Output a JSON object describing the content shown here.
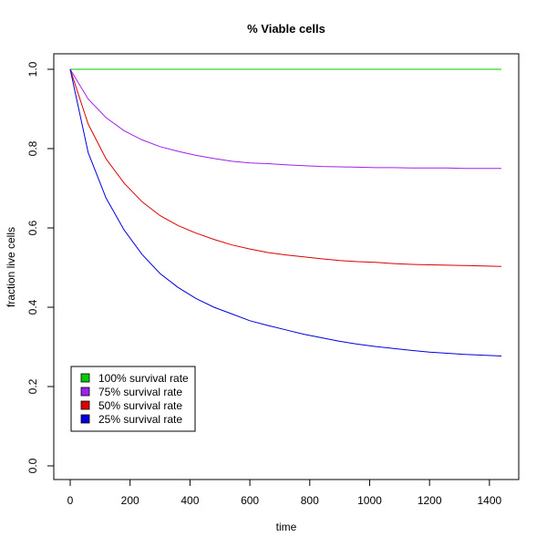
{
  "chart_data": {
    "type": "line",
    "title": "% Viable cells",
    "xlabel": "time",
    "ylabel": "fraction live cells",
    "xlim": [
      0,
      1440
    ],
    "ylim": [
      0,
      1
    ],
    "x_ticks": [
      0,
      200,
      400,
      600,
      800,
      1000,
      1200,
      1400
    ],
    "x_tick_labels": [
      "0",
      "200",
      "400",
      "600",
      "800",
      "1000",
      "1200",
      "1400"
    ],
    "y_ticks": [
      0,
      0.2,
      0.4,
      0.6,
      0.8,
      1.0
    ],
    "y_tick_labels": [
      "0.0",
      "0.2",
      "0.4",
      "0.6",
      "0.8",
      "1.0"
    ],
    "grid": false,
    "legend_position": "bottom-left",
    "x": [
      0,
      60,
      120,
      180,
      240,
      300,
      360,
      420,
      480,
      540,
      600,
      660,
      720,
      780,
      840,
      900,
      960,
      1020,
      1080,
      1140,
      1200,
      1260,
      1320,
      1380,
      1440
    ],
    "series": [
      {
        "name": "100% survival rate",
        "color": "#00cc00",
        "values": [
          1.0,
          1.0,
          1.0,
          1.0,
          1.0,
          1.0,
          1.0,
          1.0,
          1.0,
          1.0,
          1.0,
          1.0,
          1.0,
          1.0,
          1.0,
          1.0,
          1.0,
          1.0,
          1.0,
          1.0,
          1.0,
          1.0,
          1.0,
          1.0,
          1.0
        ]
      },
      {
        "name": "75% survival rate",
        "color": "#a020f0",
        "values": [
          1.0,
          0.925,
          0.878,
          0.845,
          0.822,
          0.805,
          0.793,
          0.783,
          0.775,
          0.768,
          0.764,
          0.762,
          0.759,
          0.757,
          0.755,
          0.754,
          0.753,
          0.752,
          0.752,
          0.751,
          0.751,
          0.751,
          0.75,
          0.75,
          0.75
        ]
      },
      {
        "name": "50% survival rate",
        "color": "#dd0000",
        "values": [
          1.0,
          0.862,
          0.774,
          0.713,
          0.666,
          0.631,
          0.606,
          0.587,
          0.571,
          0.557,
          0.547,
          0.538,
          0.532,
          0.527,
          0.522,
          0.518,
          0.515,
          0.513,
          0.51,
          0.508,
          0.507,
          0.506,
          0.505,
          0.504,
          0.503
        ]
      },
      {
        "name": "25% survival rate",
        "color": "#0000dd",
        "values": [
          1.0,
          0.79,
          0.675,
          0.595,
          0.533,
          0.485,
          0.45,
          0.422,
          0.4,
          0.383,
          0.366,
          0.354,
          0.343,
          0.332,
          0.323,
          0.314,
          0.307,
          0.301,
          0.296,
          0.291,
          0.287,
          0.284,
          0.281,
          0.279,
          0.277
        ]
      }
    ]
  }
}
